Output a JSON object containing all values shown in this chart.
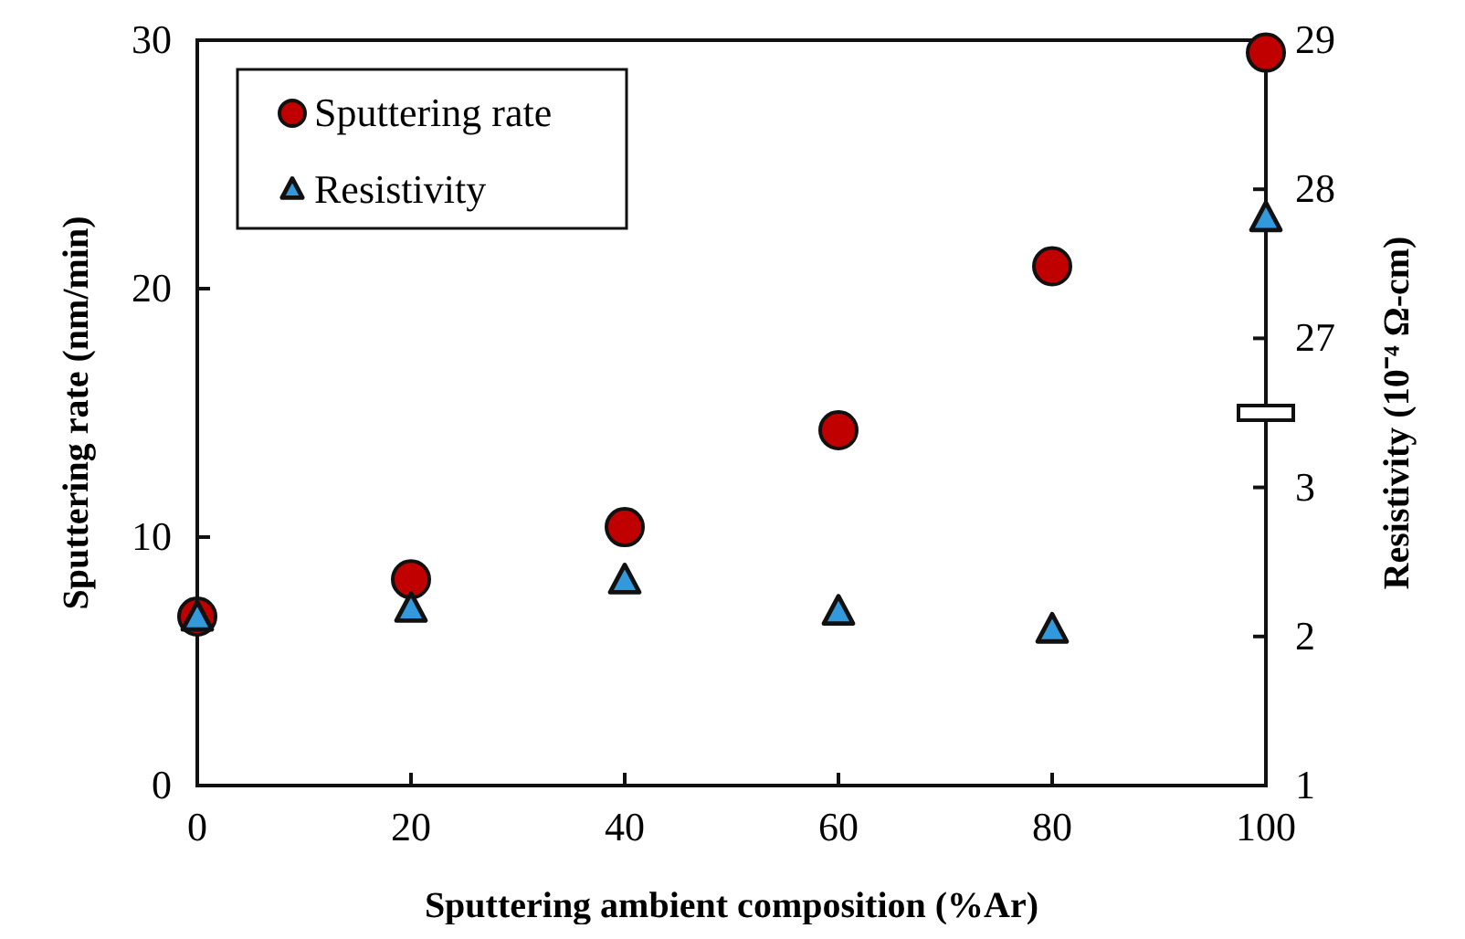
{
  "chart_data": {
    "type": "scatter",
    "xlabel": "Sputtering ambient composition (%Ar)",
    "ylabel": "Sputtering rate (nm/min)",
    "y2label": "Resistivity (10⁻⁴ Ω-cm)",
    "x": [
      0,
      20,
      40,
      60,
      80,
      100
    ],
    "series": [
      {
        "name": "Sputtering rate",
        "color": "#c00000",
        "marker": "circle",
        "values": [
          6.8,
          8.3,
          10.4,
          14.3,
          20.9,
          29.5
        ]
      },
      {
        "name": "Resistivity",
        "color": "#3399dd",
        "marker": "triangle",
        "axis": "y2",
        "values": [
          2.12,
          2.18,
          2.37,
          2.16,
          2.04,
          null
        ]
      },
      {
        "color": "#3399dd",
        "marker": "triangle",
        "axis": "y3",
        "x": [
          100
        ],
        "values": [
          27.8
        ]
      }
    ],
    "xlim": [
      0,
      100
    ],
    "xticks": [
      0,
      20,
      40,
      60,
      80,
      100
    ],
    "ylim": [
      0,
      30
    ],
    "yticks": [
      0,
      10,
      20,
      30
    ],
    "y2lim": [
      1,
      6
    ],
    "y2ticks": [
      1,
      2,
      3
    ],
    "y3lim": [
      24,
      29
    ],
    "y3ticks": [
      27,
      28,
      29
    ],
    "grid": false,
    "legend": "top left"
  }
}
